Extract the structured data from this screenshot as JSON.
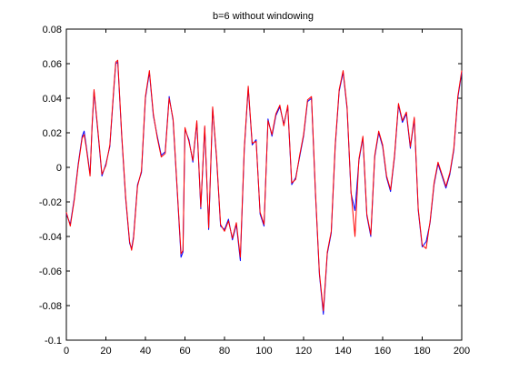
{
  "chart_data": {
    "type": "line",
    "title": "b=6 without windowing",
    "xlabel": "",
    "ylabel": "",
    "xlim": [
      0,
      200
    ],
    "ylim": [
      -0.1,
      0.08
    ],
    "grid": false,
    "x_ticks": [
      0,
      20,
      40,
      60,
      80,
      100,
      120,
      140,
      160,
      180,
      200
    ],
    "y_ticks": [
      -0.1,
      -0.08,
      -0.06,
      -0.04,
      -0.02,
      0,
      0.02,
      0.04,
      0.06,
      0.08
    ],
    "y_tick_labels": [
      "-0.1",
      "-0.08",
      "-0.06",
      "-0.04",
      "-0.02",
      "0",
      "0.02",
      "0.04",
      "0.06",
      "0.08"
    ],
    "x_tick_labels": [
      "0",
      "20",
      "40",
      "60",
      "80",
      "100",
      "120",
      "140",
      "160",
      "180",
      "200"
    ],
    "series": [
      {
        "color": "#0000ff",
        "x": [
          0,
          2,
          4,
          6,
          8,
          9,
          10,
          12,
          13,
          14,
          16,
          18,
          20,
          22,
          24,
          25,
          26,
          28,
          30,
          32,
          33,
          34,
          36,
          38,
          40,
          42,
          44,
          46,
          48,
          50,
          52,
          54,
          56,
          58,
          59,
          60,
          62,
          64,
          66,
          68,
          70,
          72,
          74,
          76,
          78,
          80,
          82,
          84,
          86,
          88,
          90,
          92,
          94,
          96,
          98,
          100,
          102,
          104,
          106,
          108,
          110,
          112,
          114,
          116,
          118,
          120,
          122,
          124,
          126,
          128,
          130,
          132,
          134,
          136,
          138,
          140,
          142,
          144,
          146,
          148,
          150,
          152,
          154,
          156,
          158,
          160,
          162,
          164,
          166,
          168,
          170,
          172,
          174,
          176,
          178,
          180,
          182,
          184,
          186,
          188,
          190,
          192,
          194,
          196,
          198,
          200
        ],
        "y": [
          -0.027,
          -0.033,
          -0.018,
          0.002,
          0.018,
          0.021,
          0.013,
          -0.004,
          0.023,
          0.044,
          0.02,
          -0.005,
          0.002,
          0.012,
          0.045,
          0.06,
          0.061,
          0.018,
          -0.018,
          -0.044,
          -0.047,
          -0.04,
          -0.01,
          -0.003,
          0.04,
          0.055,
          0.03,
          0.018,
          0.007,
          0.009,
          0.041,
          0.027,
          -0.012,
          -0.052,
          -0.049,
          0.022,
          0.016,
          0.003,
          0.026,
          -0.024,
          0.023,
          -0.036,
          0.034,
          0.005,
          -0.034,
          -0.036,
          -0.03,
          -0.042,
          -0.033,
          -0.054,
          0.01,
          0.046,
          0.013,
          0.016,
          -0.027,
          -0.034,
          0.028,
          0.018,
          0.03,
          0.035,
          0.025,
          0.035,
          -0.01,
          -0.006,
          0.006,
          0.018,
          0.038,
          0.04,
          -0.015,
          -0.062,
          -0.085,
          -0.05,
          -0.038,
          0.012,
          0.044,
          0.055,
          0.034,
          -0.015,
          -0.025,
          0.004,
          0.017,
          -0.028,
          -0.04,
          0.006,
          0.02,
          0.012,
          -0.006,
          -0.014,
          0.006,
          0.036,
          0.026,
          0.031,
          0.011,
          0.028,
          -0.025,
          -0.046,
          -0.043,
          -0.032,
          -0.01,
          0.002,
          -0.005,
          -0.012,
          -0.004,
          0.01,
          0.04,
          0.055
        ]
      },
      {
        "color": "#ff0000",
        "x": [
          0,
          2,
          4,
          6,
          8,
          9,
          10,
          12,
          13,
          14,
          16,
          18,
          20,
          22,
          24,
          25,
          26,
          28,
          30,
          32,
          33,
          34,
          36,
          38,
          40,
          42,
          44,
          46,
          48,
          50,
          52,
          54,
          56,
          58,
          59,
          60,
          62,
          64,
          66,
          68,
          70,
          72,
          74,
          76,
          78,
          80,
          82,
          84,
          86,
          88,
          90,
          92,
          94,
          96,
          98,
          100,
          102,
          104,
          106,
          108,
          110,
          112,
          114,
          116,
          118,
          120,
          122,
          124,
          126,
          128,
          130,
          132,
          134,
          136,
          138,
          140,
          142,
          144,
          146,
          148,
          150,
          152,
          154,
          156,
          158,
          160,
          162,
          164,
          166,
          168,
          170,
          172,
          174,
          176,
          178,
          180,
          182,
          184,
          186,
          188,
          190,
          192,
          194,
          196,
          198,
          200
        ],
        "y": [
          -0.026,
          -0.034,
          -0.019,
          0.001,
          0.017,
          0.019,
          0.012,
          -0.005,
          0.024,
          0.045,
          0.021,
          -0.004,
          0.001,
          0.013,
          0.046,
          0.061,
          0.062,
          0.019,
          -0.017,
          -0.043,
          -0.048,
          -0.041,
          -0.011,
          -0.002,
          0.041,
          0.056,
          0.031,
          0.017,
          0.006,
          0.008,
          0.04,
          0.028,
          -0.011,
          -0.05,
          -0.048,
          0.023,
          0.015,
          0.004,
          0.027,
          -0.023,
          0.024,
          -0.035,
          0.035,
          0.006,
          -0.033,
          -0.037,
          -0.031,
          -0.041,
          -0.032,
          -0.052,
          0.011,
          0.047,
          0.014,
          0.015,
          -0.026,
          -0.033,
          0.027,
          0.019,
          0.031,
          0.036,
          0.024,
          0.036,
          -0.009,
          -0.007,
          0.007,
          0.019,
          0.039,
          0.041,
          -0.014,
          -0.061,
          -0.083,
          -0.049,
          -0.037,
          0.013,
          0.045,
          0.056,
          0.035,
          -0.014,
          -0.04,
          0.005,
          0.018,
          -0.027,
          -0.039,
          0.007,
          0.021,
          0.013,
          -0.005,
          -0.013,
          0.007,
          0.037,
          0.027,
          0.032,
          0.012,
          0.029,
          -0.024,
          -0.045,
          -0.047,
          -0.031,
          -0.009,
          0.003,
          -0.004,
          -0.011,
          -0.003,
          0.011,
          0.041,
          0.056
        ]
      }
    ]
  }
}
